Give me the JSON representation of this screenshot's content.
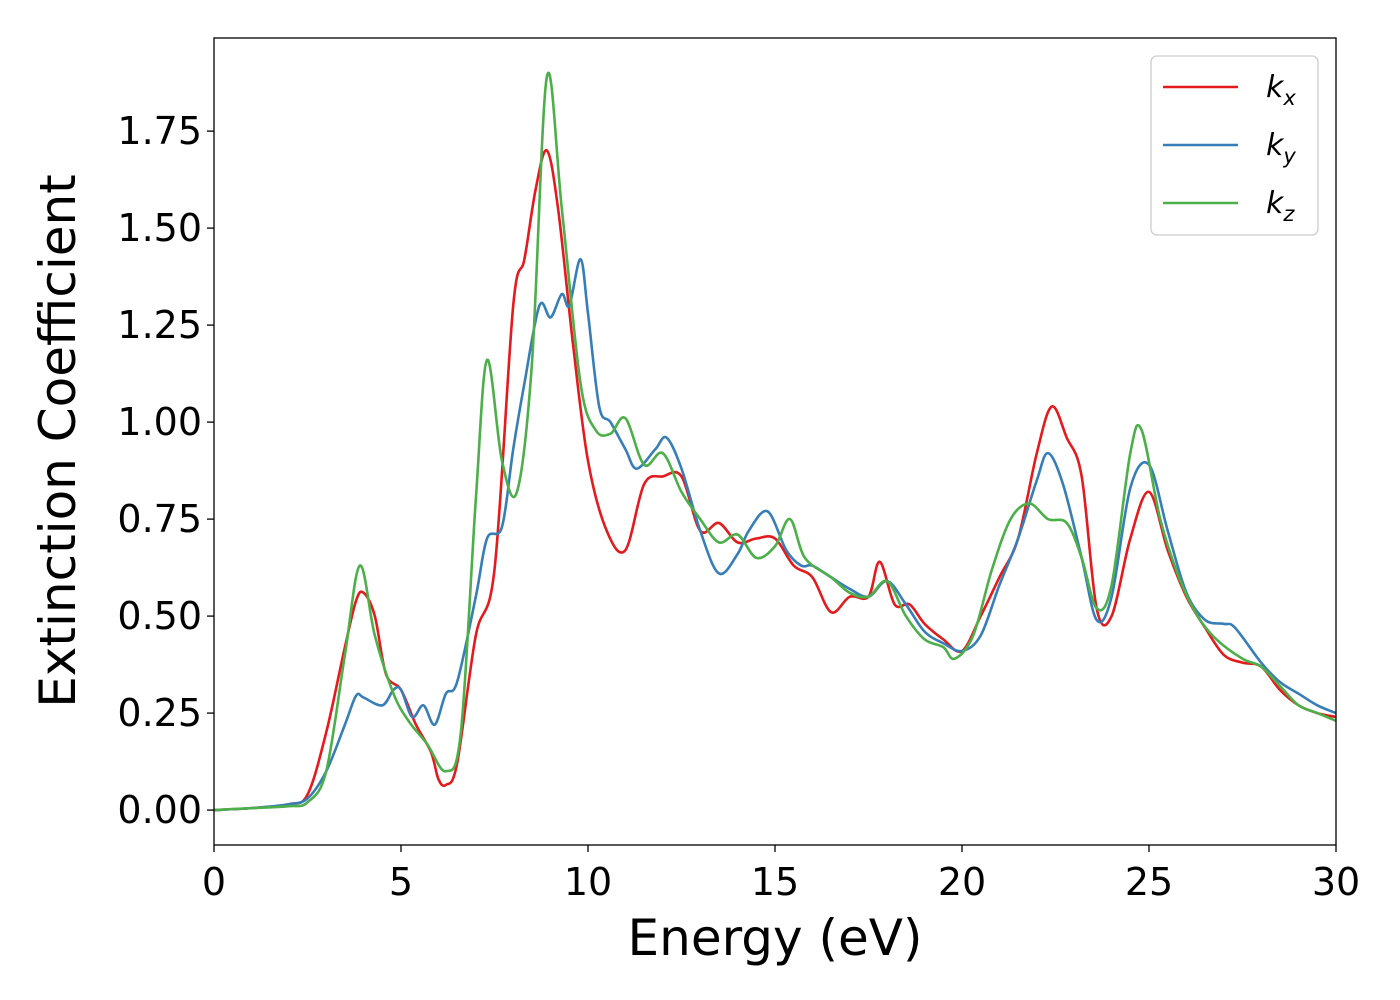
{
  "chart_data": {
    "type": "line",
    "xlabel": "Energy (eV)",
    "ylabel": "Extinction Coefficient",
    "xlim": [
      0,
      30
    ],
    "ylim": [
      -0.09,
      1.99
    ],
    "xticks": [
      0,
      5,
      10,
      15,
      20,
      25,
      30
    ],
    "xtick_labels": [
      "0",
      "5",
      "10",
      "15",
      "20",
      "25",
      "30"
    ],
    "yticks": [
      0,
      0.25,
      0.5,
      0.75,
      1.0,
      1.25,
      1.5,
      1.75
    ],
    "ytick_labels": [
      "0.00",
      "0.25",
      "0.50",
      "0.75",
      "1.00",
      "1.25",
      "1.50",
      "1.75"
    ],
    "grid": false,
    "legend_position": "top-right",
    "series": [
      {
        "name": "k",
        "subscript": "x",
        "color": "#e41a1c",
        "points": [
          [
            0,
            0
          ],
          [
            1,
            0.005
          ],
          [
            2,
            0.015
          ],
          [
            2.5,
            0.04
          ],
          [
            3,
            0.2
          ],
          [
            3.5,
            0.42
          ],
          [
            3.8,
            0.54
          ],
          [
            4,
            0.56
          ],
          [
            4.3,
            0.5
          ],
          [
            4.6,
            0.35
          ],
          [
            5,
            0.31
          ],
          [
            5.4,
            0.22
          ],
          [
            5.8,
            0.15
          ],
          [
            6,
            0.08
          ],
          [
            6.2,
            0.065
          ],
          [
            6.5,
            0.12
          ],
          [
            7,
            0.45
          ],
          [
            7.5,
            0.62
          ],
          [
            8,
            1.3
          ],
          [
            8.3,
            1.42
          ],
          [
            8.6,
            1.6
          ],
          [
            8.9,
            1.7
          ],
          [
            9.2,
            1.55
          ],
          [
            9.6,
            1.2
          ],
          [
            10,
            0.9
          ],
          [
            10.5,
            0.72
          ],
          [
            11,
            0.67
          ],
          [
            11.5,
            0.84
          ],
          [
            12,
            0.86
          ],
          [
            12.5,
            0.86
          ],
          [
            13,
            0.72
          ],
          [
            13.5,
            0.74
          ],
          [
            14,
            0.69
          ],
          [
            14.5,
            0.7
          ],
          [
            15,
            0.7
          ],
          [
            15.5,
            0.63
          ],
          [
            16,
            0.6
          ],
          [
            16.5,
            0.51
          ],
          [
            17,
            0.55
          ],
          [
            17.5,
            0.55
          ],
          [
            17.8,
            0.64
          ],
          [
            18.2,
            0.53
          ],
          [
            18.6,
            0.53
          ],
          [
            19,
            0.48
          ],
          [
            19.5,
            0.44
          ],
          [
            20,
            0.41
          ],
          [
            20.5,
            0.5
          ],
          [
            21,
            0.6
          ],
          [
            21.5,
            0.7
          ],
          [
            22,
            0.92
          ],
          [
            22.4,
            1.04
          ],
          [
            22.8,
            0.96
          ],
          [
            23.2,
            0.86
          ],
          [
            23.6,
            0.52
          ],
          [
            24,
            0.5
          ],
          [
            24.5,
            0.7
          ],
          [
            25,
            0.82
          ],
          [
            25.5,
            0.67
          ],
          [
            26,
            0.55
          ],
          [
            26.5,
            0.47
          ],
          [
            27,
            0.4
          ],
          [
            27.5,
            0.38
          ],
          [
            28,
            0.37
          ],
          [
            28.5,
            0.31
          ],
          [
            29,
            0.27
          ],
          [
            29.5,
            0.25
          ],
          [
            30,
            0.24
          ]
        ]
      },
      {
        "name": "k",
        "subscript": "y",
        "color": "#377eb8",
        "points": [
          [
            0,
            0
          ],
          [
            1,
            0.005
          ],
          [
            2,
            0.015
          ],
          [
            2.5,
            0.03
          ],
          [
            3,
            0.1
          ],
          [
            3.5,
            0.22
          ],
          [
            3.8,
            0.295
          ],
          [
            4,
            0.29
          ],
          [
            4.5,
            0.27
          ],
          [
            4.8,
            0.31
          ],
          [
            5,
            0.31
          ],
          [
            5.3,
            0.24
          ],
          [
            5.6,
            0.27
          ],
          [
            5.9,
            0.22
          ],
          [
            6.2,
            0.3
          ],
          [
            6.5,
            0.33
          ],
          [
            7,
            0.55
          ],
          [
            7.3,
            0.7
          ],
          [
            7.7,
            0.73
          ],
          [
            8,
            0.93
          ],
          [
            8.3,
            1.1
          ],
          [
            8.7,
            1.3
          ],
          [
            9,
            1.27
          ],
          [
            9.3,
            1.33
          ],
          [
            9.5,
            1.3
          ],
          [
            9.8,
            1.42
          ],
          [
            10,
            1.28
          ],
          [
            10.3,
            1.04
          ],
          [
            10.6,
            1.0
          ],
          [
            11,
            0.93
          ],
          [
            11.3,
            0.88
          ],
          [
            11.8,
            0.93
          ],
          [
            12.1,
            0.96
          ],
          [
            12.5,
            0.88
          ],
          [
            13,
            0.72
          ],
          [
            13.5,
            0.61
          ],
          [
            14,
            0.66
          ],
          [
            14.3,
            0.72
          ],
          [
            14.8,
            0.77
          ],
          [
            15.3,
            0.67
          ],
          [
            15.7,
            0.63
          ],
          [
            16,
            0.63
          ],
          [
            16.5,
            0.6
          ],
          [
            17,
            0.57
          ],
          [
            17.5,
            0.55
          ],
          [
            18,
            0.59
          ],
          [
            18.5,
            0.53
          ],
          [
            19,
            0.46
          ],
          [
            19.5,
            0.43
          ],
          [
            20,
            0.41
          ],
          [
            20.5,
            0.45
          ],
          [
            21,
            0.58
          ],
          [
            21.5,
            0.7
          ],
          [
            22,
            0.85
          ],
          [
            22.3,
            0.92
          ],
          [
            22.7,
            0.84
          ],
          [
            23.2,
            0.65
          ],
          [
            23.6,
            0.49
          ],
          [
            24,
            0.55
          ],
          [
            24.5,
            0.83
          ],
          [
            25,
            0.89
          ],
          [
            25.5,
            0.72
          ],
          [
            26,
            0.56
          ],
          [
            26.5,
            0.49
          ],
          [
            27,
            0.48
          ],
          [
            27.3,
            0.47
          ],
          [
            28,
            0.38
          ],
          [
            28.5,
            0.33
          ],
          [
            29,
            0.3
          ],
          [
            29.5,
            0.27
          ],
          [
            30,
            0.25
          ]
        ]
      },
      {
        "name": "k",
        "subscript": "z",
        "color": "#4daf4a",
        "points": [
          [
            0,
            0
          ],
          [
            1,
            0.005
          ],
          [
            2,
            0.01
          ],
          [
            2.5,
            0.02
          ],
          [
            3,
            0.1
          ],
          [
            3.5,
            0.4
          ],
          [
            3.9,
            0.63
          ],
          [
            4.3,
            0.45
          ],
          [
            4.8,
            0.3
          ],
          [
            5.2,
            0.23
          ],
          [
            5.7,
            0.17
          ],
          [
            6.2,
            0.1
          ],
          [
            6.6,
            0.2
          ],
          [
            7,
            0.8
          ],
          [
            7.3,
            1.16
          ],
          [
            7.7,
            0.9
          ],
          [
            8.1,
            0.82
          ],
          [
            8.5,
            1.15
          ],
          [
            8.9,
            1.89
          ],
          [
            9.3,
            1.55
          ],
          [
            9.8,
            1.1
          ],
          [
            10.2,
            0.98
          ],
          [
            10.6,
            0.97
          ],
          [
            11,
            1.01
          ],
          [
            11.5,
            0.89
          ],
          [
            12,
            0.92
          ],
          [
            12.5,
            0.82
          ],
          [
            13,
            0.75
          ],
          [
            13.5,
            0.69
          ],
          [
            14,
            0.71
          ],
          [
            14.5,
            0.65
          ],
          [
            15,
            0.68
          ],
          [
            15.4,
            0.75
          ],
          [
            15.8,
            0.65
          ],
          [
            16.5,
            0.6
          ],
          [
            17,
            0.56
          ],
          [
            17.5,
            0.55
          ],
          [
            18,
            0.59
          ],
          [
            18.5,
            0.5
          ],
          [
            19,
            0.44
          ],
          [
            19.5,
            0.42
          ],
          [
            19.8,
            0.39
          ],
          [
            20.3,
            0.45
          ],
          [
            20.8,
            0.62
          ],
          [
            21.3,
            0.75
          ],
          [
            21.8,
            0.79
          ],
          [
            22.3,
            0.75
          ],
          [
            22.8,
            0.74
          ],
          [
            23.2,
            0.65
          ],
          [
            23.6,
            0.52
          ],
          [
            24,
            0.58
          ],
          [
            24.5,
            0.92
          ],
          [
            24.8,
            0.98
          ],
          [
            25.3,
            0.75
          ],
          [
            25.8,
            0.6
          ],
          [
            26.3,
            0.5
          ],
          [
            26.8,
            0.44
          ],
          [
            27.5,
            0.39
          ],
          [
            28,
            0.37
          ],
          [
            28.5,
            0.32
          ],
          [
            29,
            0.27
          ],
          [
            29.5,
            0.25
          ],
          [
            30,
            0.23
          ]
        ]
      }
    ]
  }
}
